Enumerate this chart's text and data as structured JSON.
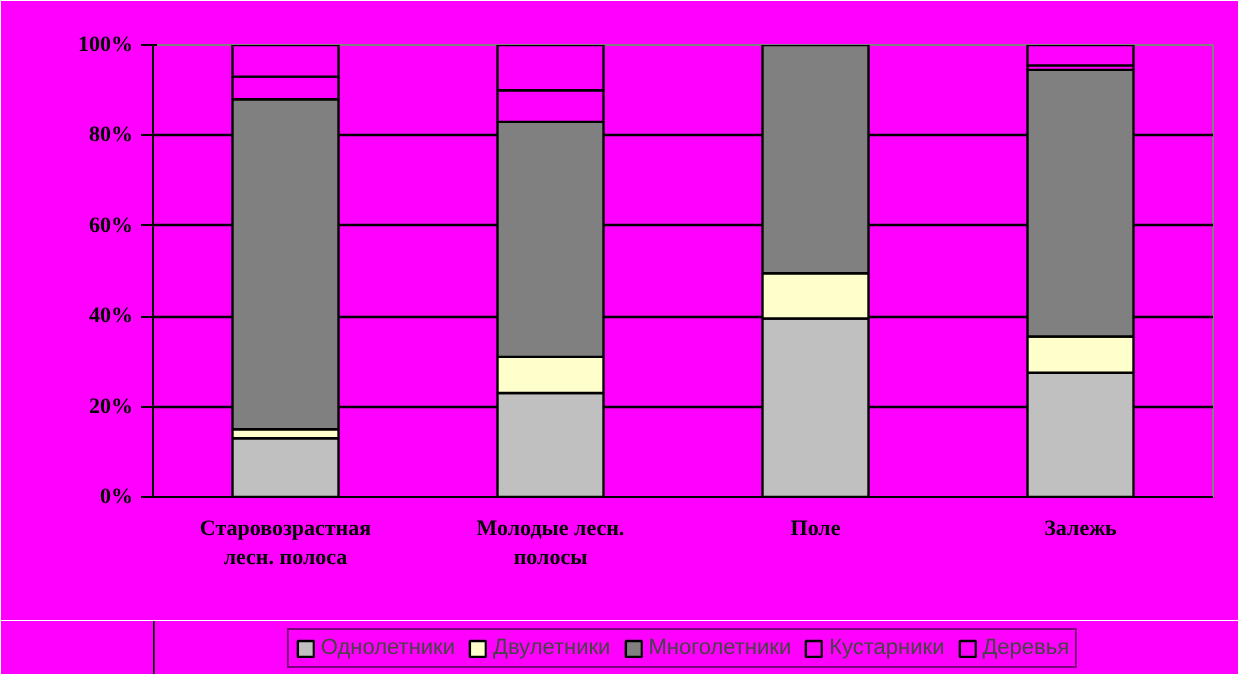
{
  "chart_data": {
    "type": "bar",
    "stacked": true,
    "categories": [
      "Старовозрастная\nлесн. полоса",
      "Молодые лесн.\nполосы",
      "Поле",
      "Залежь"
    ],
    "series": [
      {
        "name": "Однолетники",
        "color": "#c0c0c0",
        "values": [
          13,
          23,
          39.5,
          27.5
        ]
      },
      {
        "name": "Двулетники",
        "color": "#ffffcc",
        "values": [
          2,
          8,
          10,
          8
        ]
      },
      {
        "name": "Многолетники",
        "color": "#808080",
        "values": [
          73,
          52,
          50.5,
          59
        ]
      },
      {
        "name": "Кустарники",
        "color": "#ff00ff",
        "values": [
          5,
          7,
          0,
          1
        ]
      },
      {
        "name": "Деревья",
        "color": "#ff00ff",
        "values": [
          7,
          10,
          0,
          4.5
        ]
      }
    ],
    "ylim": [
      0,
      100
    ],
    "yticks": [
      {
        "value": 0,
        "label": "0%"
      },
      {
        "value": 20,
        "label": "20%"
      },
      {
        "value": 40,
        "label": "40%"
      },
      {
        "value": 60,
        "label": "60%"
      },
      {
        "value": 80,
        "label": "80%"
      },
      {
        "value": 100,
        "label": "100%"
      }
    ],
    "grid": "y",
    "legend": "bottom"
  }
}
